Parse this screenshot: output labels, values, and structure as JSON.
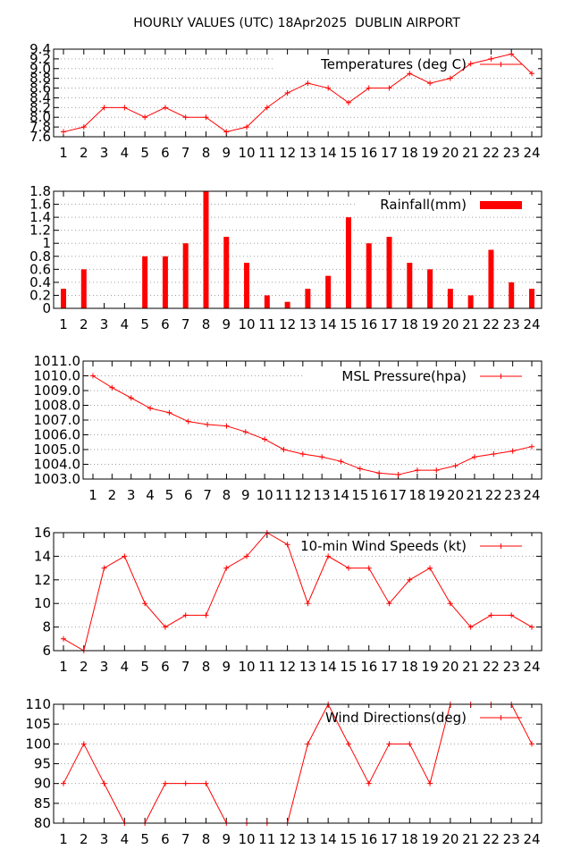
{
  "title": "HOURLY VALUES (UTC) 18Apr2025  DUBLIN AIRPORT",
  "colors": {
    "series": "#ff0000",
    "grid": "#a0a0a0",
    "axis": "#000000"
  },
  "chart_data": [
    {
      "type": "line",
      "legend": "Temperatures (deg C)",
      "legend_position": "top-right",
      "grid": true,
      "x": [
        1,
        2,
        3,
        4,
        5,
        6,
        7,
        8,
        9,
        10,
        11,
        12,
        13,
        14,
        15,
        16,
        17,
        18,
        19,
        20,
        21,
        22,
        23,
        24
      ],
      "xticks": [
        "1",
        "2",
        "3",
        "4",
        "5",
        "6",
        "7",
        "8",
        "9",
        "10",
        "11",
        "12",
        "13",
        "14",
        "15",
        "16",
        "17",
        "18",
        "19",
        "20",
        "21",
        "22",
        "23",
        "24"
      ],
      "ylim": [
        7.6,
        9.4
      ],
      "yticks": [
        "7.6",
        "7.8",
        "8.0",
        "8.2",
        "8.4",
        "8.6",
        "8.8",
        "9.0",
        "9.2",
        "9.4"
      ],
      "values": [
        7.7,
        7.8,
        8.2,
        8.2,
        8.0,
        8.2,
        8.0,
        8.0,
        7.7,
        7.8,
        8.2,
        8.5,
        8.7,
        8.6,
        8.3,
        8.6,
        8.6,
        8.9,
        8.7,
        8.8,
        9.1,
        9.2,
        9.3,
        8.9
      ]
    },
    {
      "type": "bar",
      "legend": "Rainfall(mm)",
      "legend_position": "top-right",
      "grid": true,
      "x": [
        1,
        2,
        3,
        4,
        5,
        6,
        7,
        8,
        9,
        10,
        11,
        12,
        13,
        14,
        15,
        16,
        17,
        18,
        19,
        20,
        21,
        22,
        23,
        24
      ],
      "xticks": [
        "1",
        "2",
        "3",
        "4",
        "5",
        "6",
        "7",
        "8",
        "9",
        "10",
        "11",
        "12",
        "13",
        "14",
        "15",
        "16",
        "17",
        "18",
        "19",
        "20",
        "21",
        "22",
        "23",
        "24"
      ],
      "ylim": [
        0,
        1.8
      ],
      "yticks": [
        "0",
        "0.2",
        "0.4",
        "0.6",
        "0.8",
        "1",
        "1.2",
        "1.4",
        "1.6",
        "1.8"
      ],
      "values": [
        0.3,
        0.6,
        0,
        0,
        0.8,
        0.8,
        1.0,
        1.8,
        1.1,
        0.7,
        0.2,
        0.1,
        0.3,
        0.5,
        1.4,
        1.0,
        1.1,
        0.7,
        0.6,
        0.3,
        0.2,
        0.9,
        0.4,
        0.3
      ]
    },
    {
      "type": "line",
      "legend": "MSL Pressure(hpa)",
      "legend_position": "top-right",
      "grid": true,
      "x": [
        1,
        2,
        3,
        4,
        5,
        6,
        7,
        8,
        9,
        10,
        11,
        12,
        13,
        14,
        15,
        16,
        17,
        18,
        19,
        20,
        21,
        22,
        23,
        24
      ],
      "xticks": [
        "1",
        "2",
        "3",
        "4",
        "5",
        "6",
        "7",
        "8",
        "9",
        "10",
        "11",
        "12",
        "13",
        "14",
        "15",
        "16",
        "17",
        "18",
        "19",
        "20",
        "21",
        "22",
        "23",
        "24"
      ],
      "ylim": [
        1003.0,
        1011.0
      ],
      "yticks": [
        "1003.0",
        "1004.0",
        "1005.0",
        "1006.0",
        "1007.0",
        "1008.0",
        "1009.0",
        "1010.0",
        "1011.0"
      ],
      "values": [
        1010.0,
        1009.2,
        1008.5,
        1007.8,
        1007.5,
        1006.9,
        1006.7,
        1006.6,
        1006.2,
        1005.7,
        1005.0,
        1004.7,
        1004.5,
        1004.2,
        1003.7,
        1003.4,
        1003.3,
        1003.6,
        1003.6,
        1003.9,
        1004.5,
        1004.7,
        1004.9,
        1005.2
      ]
    },
    {
      "type": "line",
      "legend": "10-min Wind Speeds (kt)",
      "legend_position": "top-right",
      "grid": true,
      "x": [
        1,
        2,
        3,
        4,
        5,
        6,
        7,
        8,
        9,
        10,
        11,
        12,
        13,
        14,
        15,
        16,
        17,
        18,
        19,
        20,
        21,
        22,
        23,
        24
      ],
      "xticks": [
        "1",
        "2",
        "3",
        "4",
        "5",
        "6",
        "7",
        "8",
        "9",
        "10",
        "11",
        "12",
        "13",
        "14",
        "15",
        "16",
        "17",
        "18",
        "19",
        "20",
        "21",
        "22",
        "23",
        "24"
      ],
      "ylim": [
        6,
        16
      ],
      "yticks": [
        "6",
        "8",
        "10",
        "12",
        "14",
        "16"
      ],
      "values": [
        7,
        6,
        13,
        14,
        10,
        8,
        9,
        9,
        13,
        14,
        16,
        15,
        10,
        14,
        13,
        13,
        10,
        12,
        13,
        10,
        8,
        9,
        9,
        8
      ]
    },
    {
      "type": "line",
      "legend": "Wind Directions(deg)",
      "legend_position": "top-right",
      "grid": true,
      "x": [
        1,
        2,
        3,
        4,
        5,
        6,
        7,
        8,
        9,
        10,
        11,
        12,
        13,
        14,
        15,
        16,
        17,
        18,
        19,
        20,
        21,
        22,
        23,
        24
      ],
      "xticks": [
        "1",
        "2",
        "3",
        "4",
        "5",
        "6",
        "7",
        "8",
        "9",
        "10",
        "11",
        "12",
        "13",
        "14",
        "15",
        "16",
        "17",
        "18",
        "19",
        "20",
        "21",
        "22",
        "23",
        "24"
      ],
      "ylim": [
        80,
        110
      ],
      "yticks": [
        "80",
        "85",
        "90",
        "95",
        "100",
        "105",
        "110"
      ],
      "values": [
        90,
        100,
        90,
        80,
        80,
        90,
        90,
        90,
        80,
        80,
        80,
        80,
        100,
        110,
        100,
        90,
        100,
        100,
        90,
        110,
        110,
        110,
        110,
        100
      ]
    }
  ]
}
